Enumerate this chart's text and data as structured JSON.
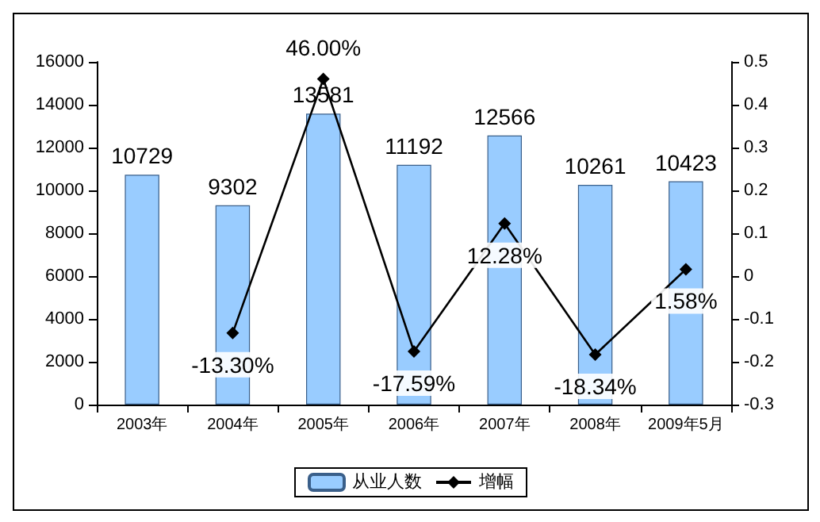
{
  "chart_data": {
    "type": "bar",
    "categories": [
      "2003年",
      "2004年",
      "2005年",
      "2006年",
      "2007年",
      "2008年",
      "2009年5月"
    ],
    "series": [
      {
        "name": "从业人数",
        "color": "#99ccff",
        "values": [
          10729,
          9302,
          13581,
          11192,
          12566,
          10261,
          10423
        ],
        "value_labels": [
          "10729",
          "9302",
          "13581",
          "11192",
          "12566",
          "10261",
          "10423"
        ]
      },
      {
        "name": "增幅",
        "type": "line",
        "axis": "y2",
        "color": "#000000",
        "marker": "diamond",
        "values": [
          null,
          -0.133,
          0.46,
          -0.1759,
          0.1228,
          -0.1834,
          0.0158
        ],
        "value_labels": [
          null,
          "-13.30%",
          "46.00%",
          "-17.59%",
          "12.28%",
          "-18.34%",
          "1.58%"
        ]
      }
    ],
    "ylim": [
      0,
      16000
    ],
    "yticks": [
      0,
      2000,
      4000,
      6000,
      8000,
      10000,
      12000,
      14000,
      16000
    ],
    "y2lim": [
      -0.3,
      0.5
    ],
    "y2ticks": [
      -0.3,
      -0.2,
      -0.1,
      0,
      0.1,
      0.2,
      0.3,
      0.4,
      0.5
    ],
    "legend": "bottom",
    "grid": false
  }
}
